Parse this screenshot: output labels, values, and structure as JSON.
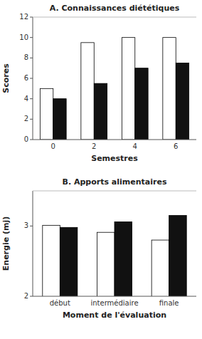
{
  "chart_data": [
    {
      "type": "bar",
      "title": "A. Connaissances diététiques",
      "categories": [
        "0",
        "2",
        "4",
        "6"
      ],
      "series": [
        {
          "color": "#ffffff",
          "values": [
            5.0,
            9.5,
            10.0,
            10.0
          ]
        },
        {
          "color": "#111111",
          "values": [
            4.0,
            5.5,
            7.0,
            7.5
          ]
        }
      ],
      "xlabel": "Semestres",
      "ylabel": "Scores",
      "ylim": [
        0,
        12
      ],
      "yticks": [
        0,
        2,
        4,
        6,
        8,
        10,
        12
      ]
    },
    {
      "type": "bar",
      "title": "B. Apports alimentaires",
      "categories": [
        "début",
        "intermédiaire",
        "finale"
      ],
      "series": [
        {
          "color": "#ffffff",
          "values": [
            3.01,
            2.91,
            2.8
          ]
        },
        {
          "color": "#111111",
          "values": [
            2.98,
            3.06,
            3.15
          ]
        }
      ],
      "xlabel": "Moment de l'évaluation",
      "ylabel": "Energie (mj)",
      "ylim": [
        2.0,
        3.5
      ],
      "yticks": [
        2,
        3
      ]
    }
  ]
}
